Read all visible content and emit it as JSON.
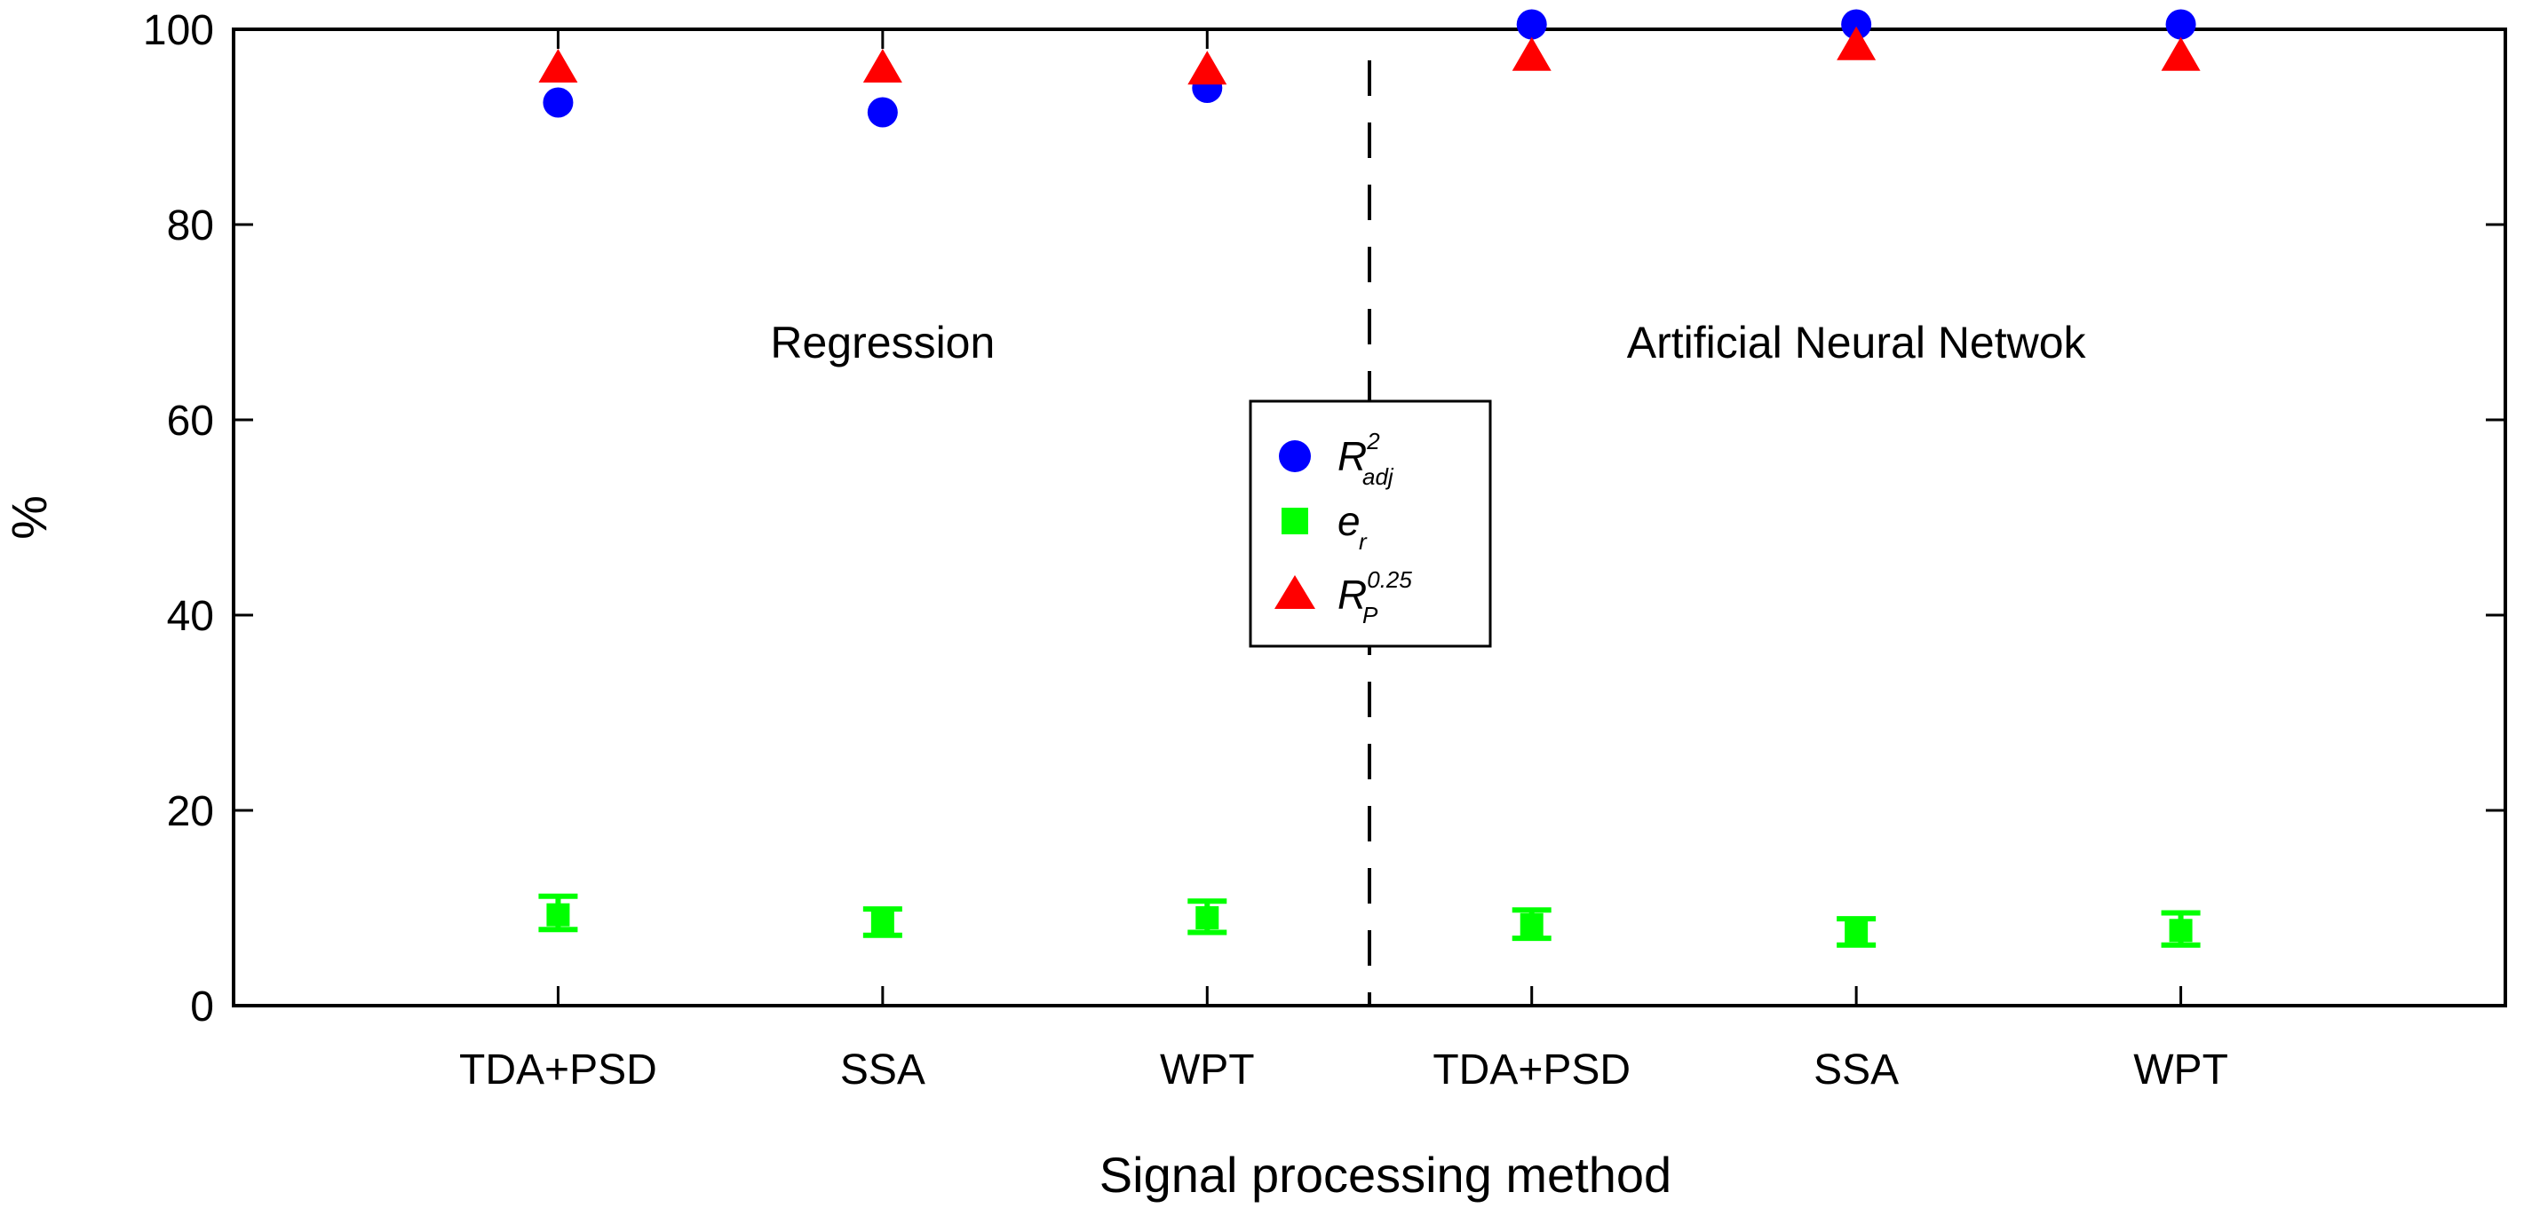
{
  "chart_data": {
    "type": "scatter",
    "ylabel": "%",
    "xlabel": "Signal processing method",
    "ylim": [
      0,
      100
    ],
    "yticks": [
      0,
      20,
      40,
      60,
      80,
      100
    ],
    "xlim": [
      0,
      7
    ],
    "categories": [
      "TDA+PSD",
      "SSA",
      "WPT",
      "TDA+PSD",
      "SSA",
      "WPT"
    ],
    "x": [
      1,
      2,
      3,
      4,
      5,
      6
    ],
    "divider_at": 3.5,
    "groups": [
      {
        "label": "Regression",
        "x": 2,
        "y": 68
      },
      {
        "label": "Artificial Neural Netwok",
        "x": 5,
        "y": 68
      }
    ],
    "series": [
      {
        "name": "R2_adj",
        "legend_main": "R",
        "legend_sup": "2",
        "legend_sub": "adj",
        "marker": "circle",
        "color": "#0000ff",
        "values": [
          92.5,
          91.5,
          94.0,
          100.5,
          100.5,
          100.5
        ]
      },
      {
        "name": "e_r",
        "legend_main": "e",
        "legend_sup": "",
        "legend_sub": "r",
        "marker": "square",
        "color": "#00ff00",
        "values": [
          9.3,
          8.5,
          9.0,
          8.3,
          7.5,
          7.7
        ],
        "error_low": [
          7.8,
          7.2,
          7.5,
          6.9,
          6.2,
          6.2
        ],
        "error_high": [
          11.2,
          9.9,
          10.7,
          9.8,
          8.9,
          9.5
        ]
      },
      {
        "name": "R_P^0.25",
        "legend_main": "R",
        "legend_sup": "0.25",
        "legend_sub": "P",
        "marker": "triangle",
        "color": "#ff0000",
        "values": [
          96.0,
          96.0,
          95.8,
          97.2,
          98.3,
          97.2
        ]
      }
    ]
  }
}
